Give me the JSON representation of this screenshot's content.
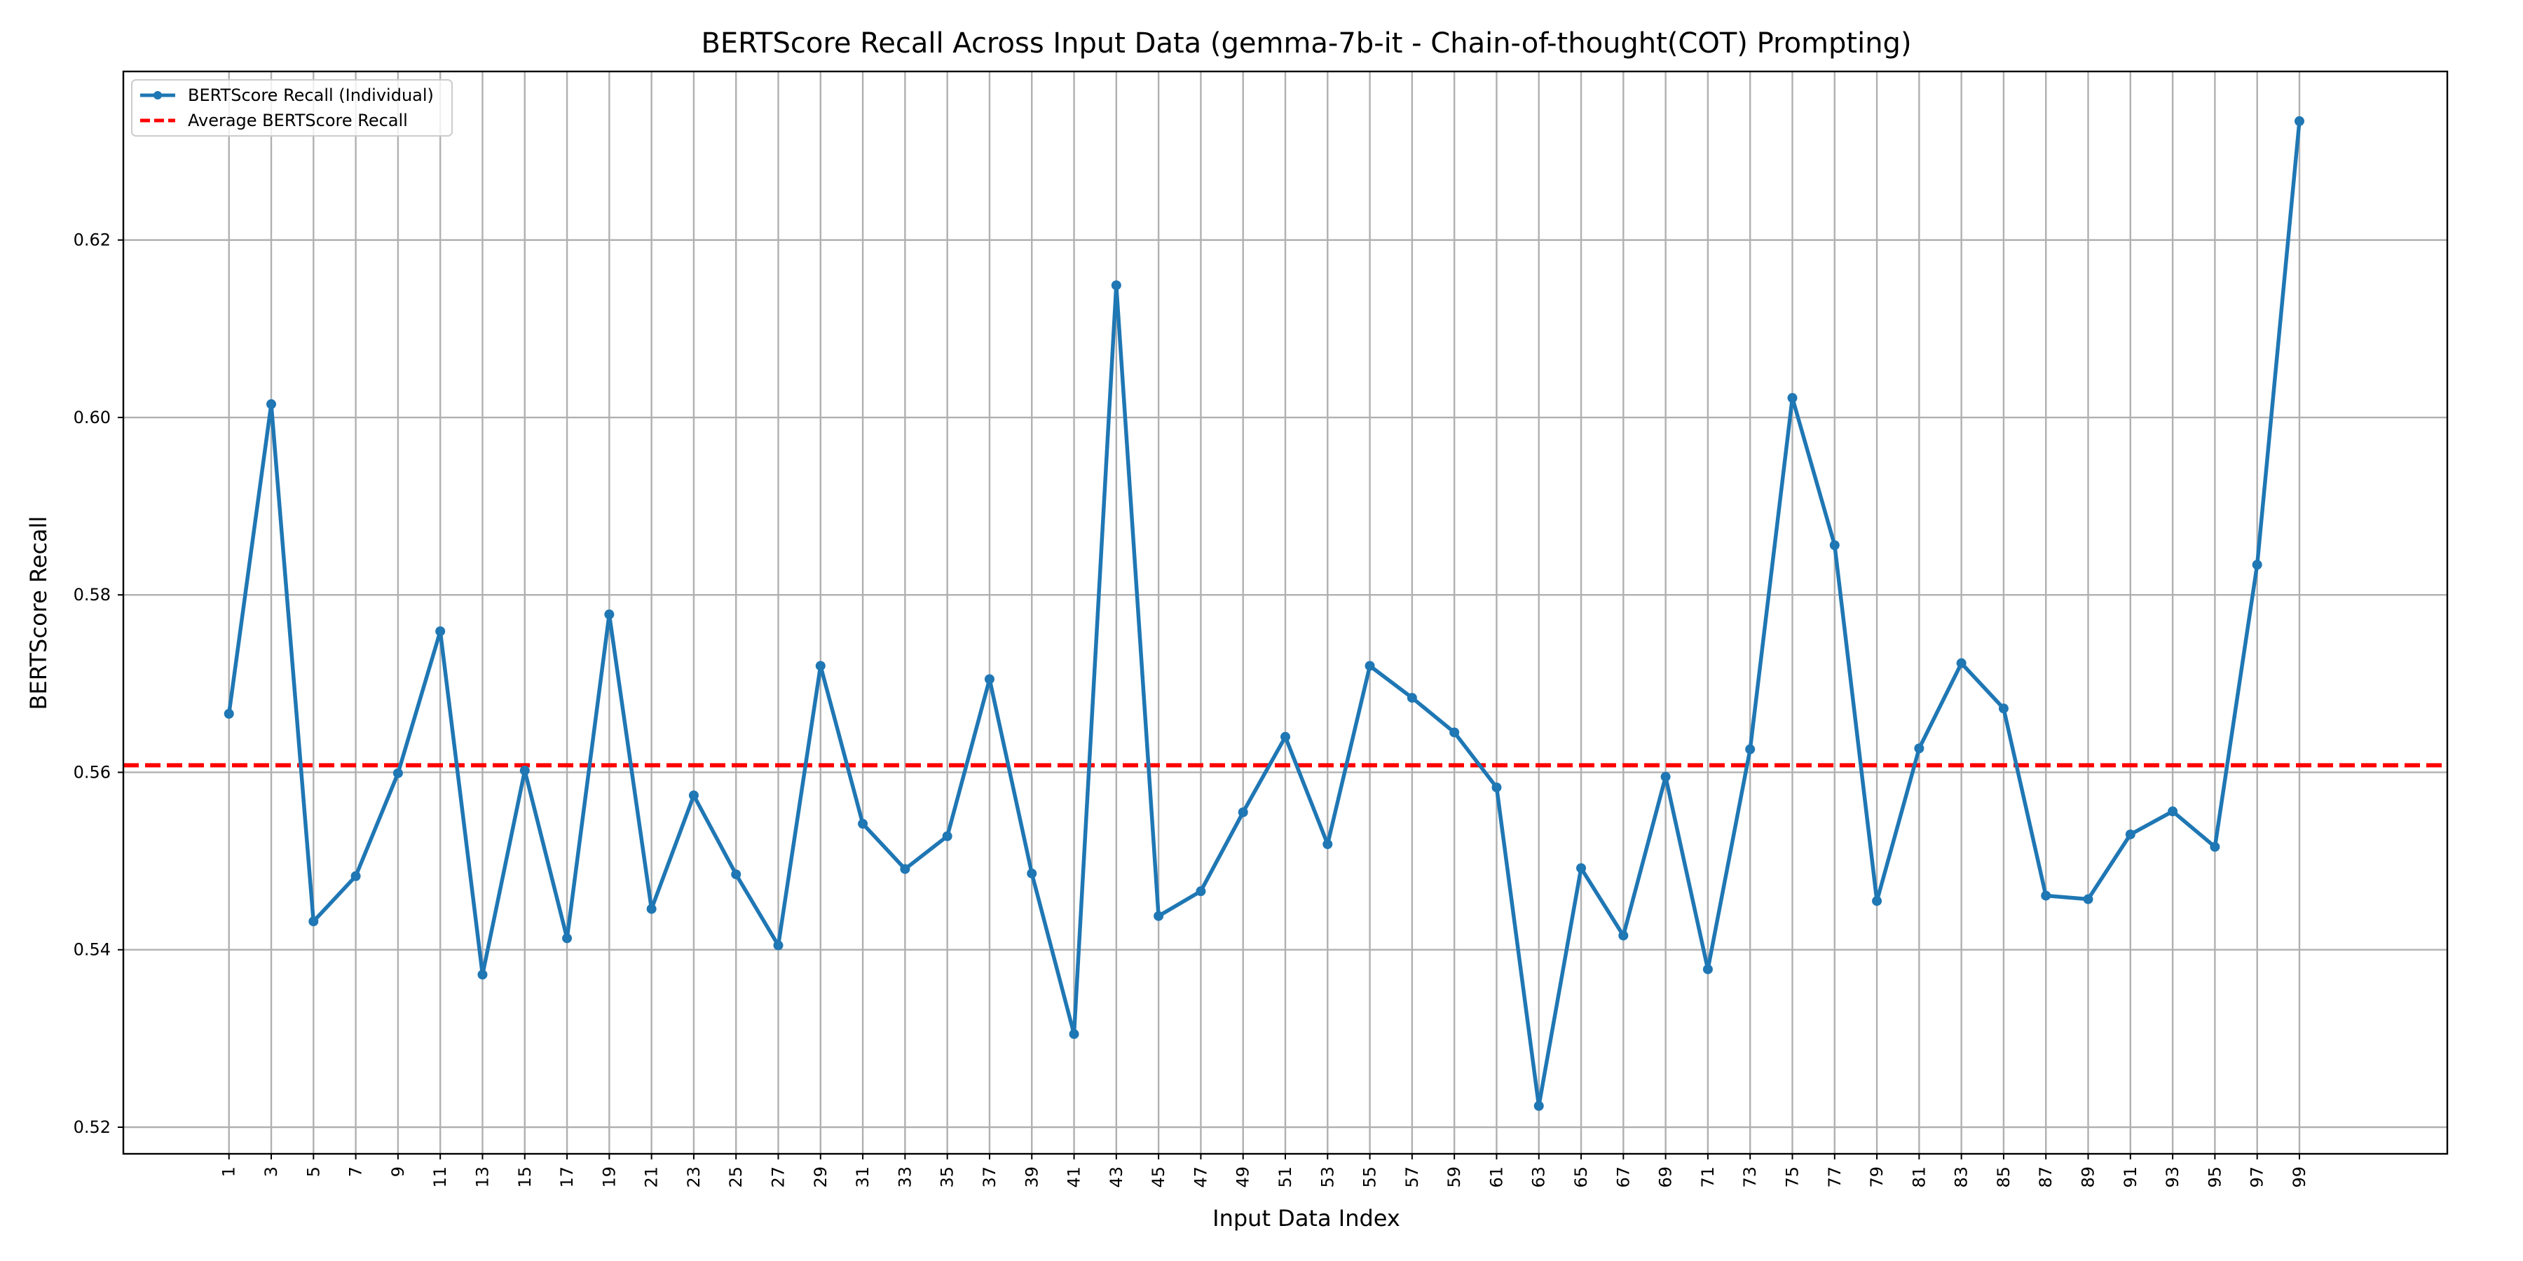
{
  "chart_data": {
    "type": "line",
    "title": "BERTScore Recall Across Input Data (gemma-7b-it - Chain-of-thought(COT) Prompting)",
    "xlabel": "Input Data Index",
    "ylabel": "BERTScore Recall",
    "xlim": [
      -4,
      106
    ],
    "ylim": [
      0.517,
      0.639
    ],
    "grid": true,
    "legend_position": "top-left",
    "x": [
      1,
      3,
      5,
      7,
      9,
      11,
      13,
      15,
      17,
      19,
      21,
      23,
      25,
      27,
      29,
      31,
      33,
      35,
      37,
      39,
      41,
      43,
      45,
      47,
      49,
      51,
      53,
      55,
      57,
      59,
      61,
      63,
      65,
      67,
      69,
      71,
      73,
      75,
      77,
      79,
      81,
      83,
      85,
      87,
      89,
      91,
      93,
      95,
      97,
      99
    ],
    "x_tick_labels": [
      "1",
      "3",
      "5",
      "7",
      "9",
      "11",
      "13",
      "15",
      "17",
      "19",
      "21",
      "23",
      "25",
      "27",
      "29",
      "31",
      "33",
      "35",
      "37",
      "39",
      "41",
      "43",
      "45",
      "47",
      "49",
      "51",
      "53",
      "55",
      "57",
      "59",
      "61",
      "63",
      "65",
      "67",
      "69",
      "71",
      "73",
      "75",
      "77",
      "79",
      "81",
      "83",
      "85",
      "87",
      "89",
      "91",
      "93",
      "95",
      "97",
      "99"
    ],
    "y_ticks": [
      0.52,
      0.54,
      0.56,
      0.58,
      0.6,
      0.62
    ],
    "y_tick_labels": [
      "0.52",
      "0.54",
      "0.56",
      "0.58",
      "0.60",
      "0.62"
    ],
    "series": [
      {
        "name": "BERTScore Recall (Individual)",
        "style": "solid-markers",
        "color": "#1f77b4",
        "values": [
          0.5666,
          0.6015,
          0.5432,
          0.5483,
          0.5599,
          0.5759,
          0.5372,
          0.5602,
          0.5413,
          0.5778,
          0.5446,
          0.5574,
          0.5485,
          0.5405,
          0.572,
          0.5542,
          0.5491,
          0.5528,
          0.5705,
          0.5486,
          0.5305,
          0.6149,
          0.5438,
          0.5466,
          0.5555,
          0.564,
          0.5519,
          0.572,
          0.5684,
          0.5645,
          0.5583,
          0.5224,
          0.5492,
          0.5416,
          0.5595,
          0.5378,
          0.5626,
          0.6022,
          0.5856,
          0.5455,
          0.5627,
          0.5723,
          0.5672,
          0.5461,
          0.5457,
          0.553,
          0.5556,
          0.5516,
          0.5834,
          0.6334
        ]
      },
      {
        "name": "Average BERTScore Recall",
        "style": "dashed",
        "color": "#ff0000",
        "value": 0.5608
      }
    ]
  }
}
